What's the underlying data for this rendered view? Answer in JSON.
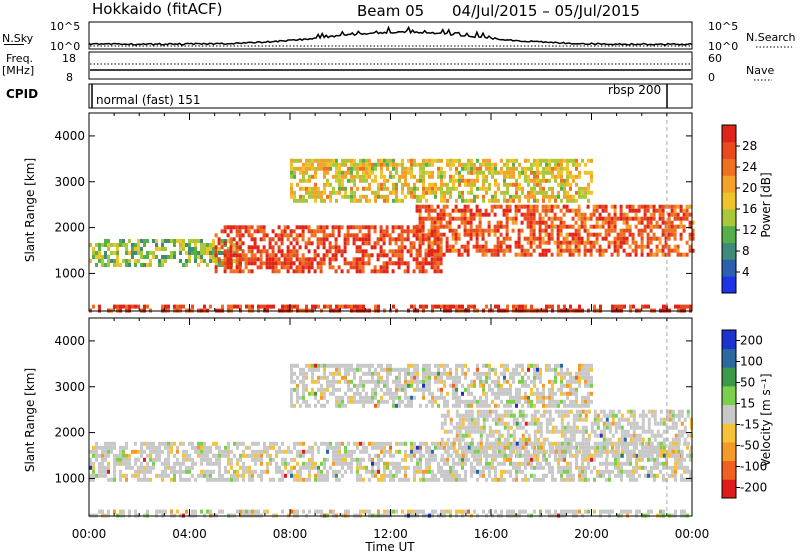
{
  "header": {
    "radar": "Hokkaido (fitACF)",
    "beam": "Beam 05",
    "date_range": "04/Jul/2015 – 05/Jul/2015"
  },
  "strips": {
    "nsky_label": "N.Sky",
    "nsky_ticks": [
      "10^5",
      "10^0"
    ],
    "nsearch_label": "N.Search",
    "freq_label": "Freq.",
    "freq_unit": "[MHz]",
    "freq_ticks": [
      "18",
      "8"
    ],
    "nave_label": "Nave",
    "nave_ticks": [
      "60",
      "0"
    ],
    "cpid_label": "CPID",
    "cpid_entries": [
      {
        "text": "normal (fast) 151",
        "start_hour": 0
      },
      {
        "text": "rbsp 200",
        "start_hour": 23
      }
    ]
  },
  "chart_data": [
    {
      "type": "heatmap",
      "name": "power",
      "xlabel": "",
      "ylabel": "Slant Range [km]",
      "xlim_hours": [
        0,
        24
      ],
      "ylim_km": [
        180,
        4500
      ],
      "y_ticks": [
        1000,
        2000,
        3000,
        4000
      ],
      "colorbar": {
        "label": "Power [dB]",
        "tick_labels": [
          "4",
          "8",
          "12",
          "16",
          "20",
          "24",
          "28"
        ],
        "range": [
          0,
          32
        ],
        "colors": [
          "#1e32e6",
          "#2c5fb0",
          "#3f8a78",
          "#55b04a",
          "#a8c83a",
          "#f0c32a",
          "#f5a028",
          "#ee7020",
          "#e84a1c",
          "#e02418"
        ]
      },
      "bands": [
        {
          "x0": 0,
          "x1": 6,
          "y0": 1200,
          "y1": 1750,
          "level": 0.42
        },
        {
          "x0": 5,
          "x1": 14,
          "y0": 1050,
          "y1": 2050,
          "level": 0.88
        },
        {
          "x0": 13,
          "x1": 24,
          "y0": 1400,
          "y1": 2500,
          "level": 0.82
        },
        {
          "x0": 8,
          "x1": 20,
          "y0": 2600,
          "y1": 3500,
          "level": 0.55
        },
        {
          "x0": 0,
          "x1": 24,
          "y0": 200,
          "y1": 320,
          "level": 0.9
        }
      ]
    },
    {
      "type": "heatmap",
      "name": "velocity",
      "xlabel": "Time UT",
      "ylabel": "Slant Range [km]",
      "xlim_hours": [
        0,
        24
      ],
      "ylim_km": [
        180,
        4500
      ],
      "x_tick_labels": [
        "00:00",
        "04:00",
        "08:00",
        "12:00",
        "16:00",
        "20:00",
        "00:00"
      ],
      "y_ticks": [
        1000,
        2000,
        3000,
        4000
      ],
      "colorbar": {
        "label": "Velocity [m s⁻¹]",
        "tick_labels": [
          "200",
          "100",
          "50",
          "15",
          "-15",
          "-50",
          "-100",
          "-200"
        ],
        "range": [
          -250,
          250
        ],
        "colors": [
          "#e01a1a",
          "#f06020",
          "#f59a28",
          "#f5c23a",
          "#c8c8c8",
          "#7ad04a",
          "#3a9a4a",
          "#2a6aa0",
          "#1e32d0"
        ]
      },
      "bands": [
        {
          "x0": 0,
          "x1": 24,
          "y0": 1000,
          "y1": 1800,
          "level": 0.5
        },
        {
          "x0": 14,
          "x1": 24,
          "y0": 1500,
          "y1": 2500,
          "level": 0.5
        },
        {
          "x0": 8,
          "x1": 20,
          "y0": 2600,
          "y1": 3500,
          "level": 0.4
        },
        {
          "x0": 0,
          "x1": 24,
          "y0": 200,
          "y1": 320,
          "level": 0.3
        }
      ]
    }
  ],
  "marker_hour": 23
}
